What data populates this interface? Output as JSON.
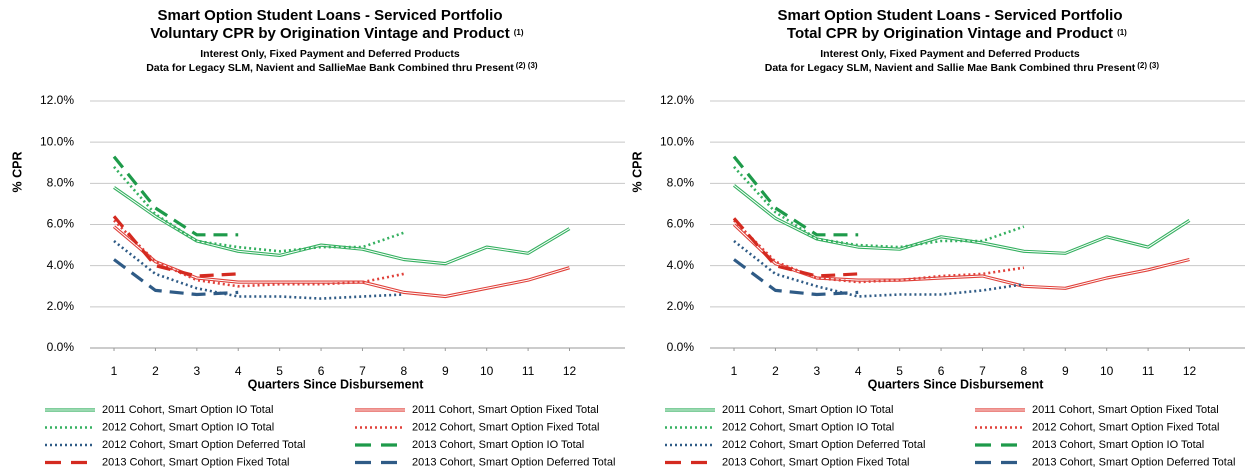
{
  "chart_data": [
    {
      "type": "line",
      "title": [
        "Smart Option Student Loans -  Serviced Portfolio",
        "Voluntary CPR  by Origination Vintage  and Product"
      ],
      "title_note": "(1)",
      "subtitle": [
        "Interest Only, Fixed Payment and Deferred Products",
        "Data for  Legacy SLM, Navient and SallieMae Bank Combined thru Present"
      ],
      "subtitle_note": "(2) (3)",
      "x_label": "Quarters Since Disbursement",
      "y_label": "% CPR",
      "x": [
        1,
        2,
        3,
        4,
        5,
        6,
        7,
        8,
        9,
        10,
        11,
        12
      ],
      "xlim": [
        0.42,
        13.34
      ],
      "xticks": [
        1,
        2,
        3,
        4,
        5,
        6,
        7,
        8,
        9,
        10,
        11,
        12
      ],
      "ylim": [
        0,
        12
      ],
      "yticks": [
        {
          "value": 0,
          "label": "0.0%"
        },
        {
          "value": 2,
          "label": "2.0%"
        },
        {
          "value": 4,
          "label": "4.0%"
        },
        {
          "value": 6,
          "label": "6.0%"
        },
        {
          "value": 8,
          "label": "8.0%"
        },
        {
          "value": 10,
          "label": "10.0%"
        },
        {
          "value": 12,
          "label": "12.0%"
        }
      ],
      "grid": true,
      "series": [
        {
          "name": "2011 Cohort, Smart Option IO Total",
          "color": "#35b060",
          "style": "double",
          "values": [
            7.8,
            6.4,
            5.2,
            4.7,
            4.5,
            5.0,
            4.8,
            4.3,
            4.1,
            4.9,
            4.6,
            5.8
          ]
        },
        {
          "name": "2011 Cohort, Smart Option Fixed Total",
          "color": "#e0413a",
          "style": "double",
          "values": [
            5.9,
            4.2,
            3.4,
            3.2,
            3.2,
            3.2,
            3.2,
            2.7,
            2.5,
            2.9,
            3.3,
            3.9
          ]
        },
        {
          "name": "2012 Cohort, Smart Option IO Total",
          "color": "#35b060",
          "style": "dotted",
          "values": [
            8.8,
            6.5,
            5.2,
            4.9,
            4.7,
            4.9,
            4.9,
            5.6,
            null,
            null,
            null,
            null
          ]
        },
        {
          "name": "2012 Cohort, Smart Option Fixed Total",
          "color": "#e0413a",
          "style": "dotted",
          "values": [
            6.2,
            4.2,
            3.3,
            3.0,
            3.1,
            3.1,
            3.2,
            3.6,
            null,
            null,
            null,
            null
          ]
        },
        {
          "name": "2012 Cohort, Smart Option Deferred Total",
          "color": "#2f5b86",
          "style": "dotted",
          "values": [
            5.2,
            3.6,
            2.9,
            2.5,
            2.5,
            2.4,
            2.5,
            2.6,
            null,
            null,
            null,
            null
          ]
        },
        {
          "name": "2013 Cohort, Smart Option IO Total",
          "color": "#1e9a4a",
          "style": "dash",
          "values": [
            9.3,
            6.8,
            5.5,
            5.5,
            null,
            null,
            null,
            null,
            null,
            null,
            null,
            null
          ]
        },
        {
          "name": "2013 Cohort, Smart Option Fixed Total",
          "color": "#d42a20",
          "style": "dash",
          "values": [
            6.4,
            4.0,
            3.5,
            3.6,
            null,
            null,
            null,
            null,
            null,
            null,
            null,
            null
          ]
        },
        {
          "name": "2013 Cohort, Smart Option Deferred Total",
          "color": "#2f5b86",
          "style": "dash",
          "values": [
            4.3,
            2.8,
            2.6,
            2.7,
            null,
            null,
            null,
            null,
            null,
            null,
            null,
            null
          ]
        }
      ]
    },
    {
      "type": "line",
      "title": [
        "Smart Option Student Loans -  Serviced Portfolio",
        "Total CPR by Origination Vintage  and Product"
      ],
      "title_note": "(1)",
      "subtitle": [
        "Interest Only, Fixed Payment and Deferred Products",
        "Data for Legacy SLM, Navient and Sallie Mae Bank Combined thru Present"
      ],
      "subtitle_note": "(2) (3)",
      "x_label": "Quarters Since Disbursement",
      "y_label": "% CPR",
      "x": [
        1,
        2,
        3,
        4,
        5,
        6,
        7,
        8,
        9,
        10,
        11,
        12
      ],
      "xlim": [
        0.42,
        13.34
      ],
      "xticks": [
        1,
        2,
        3,
        4,
        5,
        6,
        7,
        8,
        9,
        10,
        11,
        12
      ],
      "ylim": [
        0,
        12
      ],
      "yticks": [
        {
          "value": 0,
          "label": "0.0%"
        },
        {
          "value": 2,
          "label": "2.0%"
        },
        {
          "value": 4,
          "label": "4.0%"
        },
        {
          "value": 6,
          "label": "6.0%"
        },
        {
          "value": 8,
          "label": "8.0%"
        },
        {
          "value": 10,
          "label": "10.0%"
        },
        {
          "value": 12,
          "label": "12.0%"
        }
      ],
      "grid": true,
      "series": [
        {
          "name": "2011 Cohort, Smart Option IO Total",
          "color": "#35b060",
          "style": "double",
          "values": [
            7.9,
            6.3,
            5.3,
            4.9,
            4.8,
            5.4,
            5.1,
            4.7,
            4.6,
            5.4,
            4.9,
            6.2
          ]
        },
        {
          "name": "2011 Cohort, Smart Option Fixed Total",
          "color": "#e0413a",
          "style": "double",
          "values": [
            6.0,
            4.1,
            3.4,
            3.3,
            3.3,
            3.4,
            3.5,
            3.0,
            2.9,
            3.4,
            3.8,
            4.3
          ]
        },
        {
          "name": "2012 Cohort, Smart Option IO Total",
          "color": "#35b060",
          "style": "dotted",
          "values": [
            8.8,
            6.6,
            5.3,
            5.0,
            4.9,
            5.2,
            5.2,
            5.9,
            null,
            null,
            null,
            null
          ]
        },
        {
          "name": "2012 Cohort, Smart Option Fixed Total",
          "color": "#e0413a",
          "style": "dotted",
          "values": [
            6.2,
            4.2,
            3.4,
            3.2,
            3.3,
            3.5,
            3.6,
            3.9,
            null,
            null,
            null,
            null
          ]
        },
        {
          "name": "2012 Cohort, Smart Option Deferred Total",
          "color": "#2f5b86",
          "style": "dotted",
          "values": [
            5.2,
            3.6,
            3.0,
            2.5,
            2.6,
            2.6,
            2.8,
            3.1,
            null,
            null,
            null,
            null
          ]
        },
        {
          "name": "2013 Cohort, Smart Option IO Total",
          "color": "#1e9a4a",
          "style": "dash",
          "values": [
            9.3,
            6.8,
            5.5,
            5.5,
            null,
            null,
            null,
            null,
            null,
            null,
            null,
            null
          ]
        },
        {
          "name": "2013 Cohort, Smart Option Fixed Total",
          "color": "#d42a20",
          "style": "dash",
          "values": [
            6.3,
            4.0,
            3.5,
            3.6,
            null,
            null,
            null,
            null,
            null,
            null,
            null,
            null
          ]
        },
        {
          "name": "2013 Cohort, Smart Option Deferred Total",
          "color": "#2f5b86",
          "style": "dash",
          "values": [
            4.3,
            2.8,
            2.6,
            2.7,
            null,
            null,
            null,
            null,
            null,
            null,
            null,
            null
          ]
        }
      ]
    }
  ]
}
